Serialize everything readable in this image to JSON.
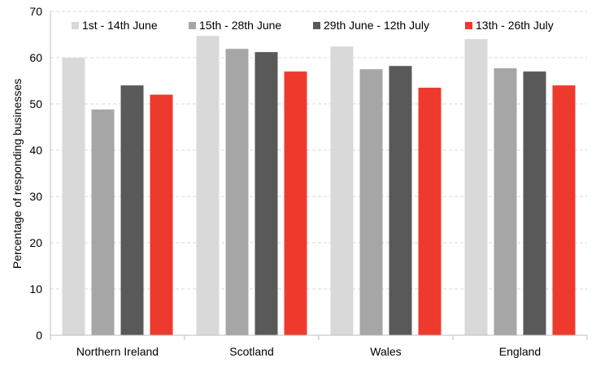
{
  "chart_data": {
    "type": "bar",
    "title": "",
    "xlabel": "",
    "ylabel": "Percentage of responding businesses",
    "ylim": [
      0,
      70
    ],
    "yticks": [
      0,
      10,
      20,
      30,
      40,
      50,
      60,
      70
    ],
    "grid": "horizontal-dashed",
    "legend_position": "top",
    "categories": [
      "Northern Ireland",
      "Scotland",
      "Wales",
      "England"
    ],
    "series": [
      {
        "name": "1st - 14th June",
        "color": "#d9d9d9",
        "values": [
          60,
          64.7,
          62.4,
          64
        ]
      },
      {
        "name": "15th - 28th June",
        "color": "#a6a6a6",
        "values": [
          48.8,
          61.9,
          57.5,
          57.7
        ]
      },
      {
        "name": "29th June - 12th July",
        "color": "#595959",
        "values": [
          54,
          61.2,
          58.2,
          57
        ]
      },
      {
        "name": "13th - 26th July",
        "color": "#ee3a2d",
        "values": [
          52,
          57,
          53.5,
          54
        ]
      }
    ]
  }
}
